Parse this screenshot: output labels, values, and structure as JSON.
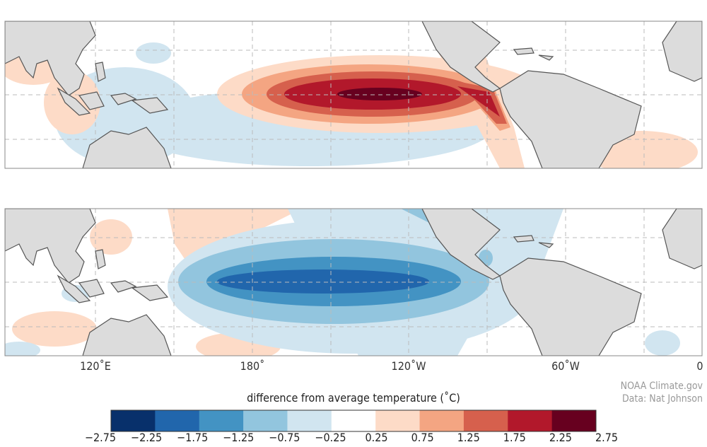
{
  "map": {
    "panels": [
      {
        "id": "top",
        "pattern": "warm anomaly (El Niño)"
      },
      {
        "id": "bottom",
        "pattern": "cool anomaly (La Niña)"
      }
    ],
    "longitude_labels": [
      "120˚E",
      "180˚",
      "120˚W",
      "60˚W",
      "0"
    ],
    "land_color": "#dcdcdc"
  },
  "colorbar": {
    "title": "difference from average temperature (˚C)",
    "ticks": [
      "−2.75",
      "−2.25",
      "−1.75",
      "−1.25",
      "−0.75",
      "−0.25",
      "0.25",
      "0.75",
      "1.25",
      "1.75",
      "2.25",
      "2.75"
    ],
    "colors": [
      "#08306b",
      "#2166ac",
      "#4393c3",
      "#92c5de",
      "#d1e5f0",
      "#ffffff",
      "#fddbc7",
      "#f4a582",
      "#d6604d",
      "#b2182b",
      "#67001f"
    ]
  },
  "credits": {
    "line1": "NOAA Climate.gov",
    "line2": "Data: Nat Johnson"
  }
}
